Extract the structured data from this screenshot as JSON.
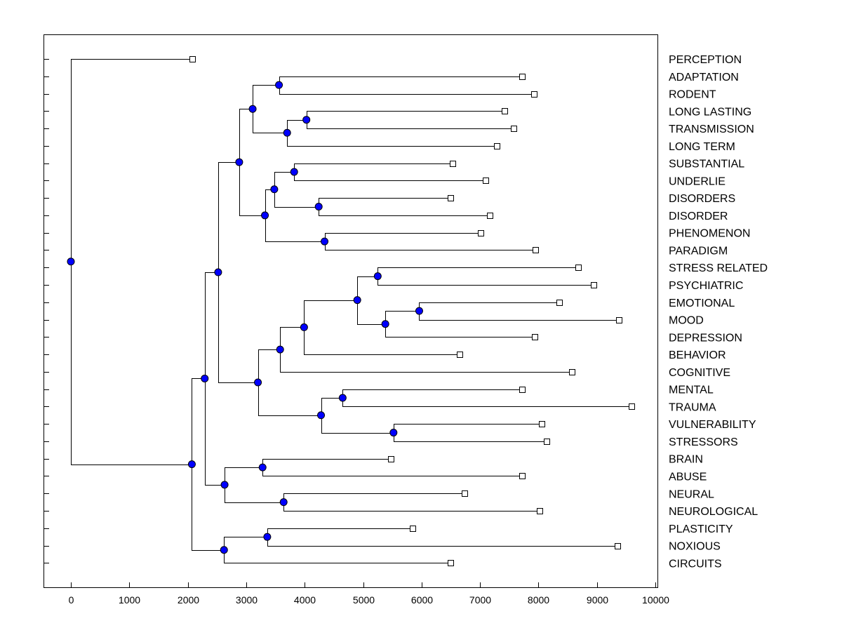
{
  "diagram": {
    "type": "dendrogram",
    "orientation": "horizontal",
    "x_axis": {
      "ticks": [
        "0",
        "1000",
        "2000",
        "3000",
        "4000",
        "5000",
        "6000",
        "7000",
        "8000",
        "9000",
        "10000"
      ],
      "range": [
        -450,
        10000
      ]
    },
    "leaves": [
      {
        "label": "PERCEPTION",
        "x": 2080
      },
      {
        "label": "ADAPTATION",
        "x": 7720
      },
      {
        "label": "RODENT",
        "x": 7920
      },
      {
        "label": "LONG LASTING",
        "x": 7420
      },
      {
        "label": "TRANSMISSION",
        "x": 7580
      },
      {
        "label": "LONG TERM",
        "x": 7290
      },
      {
        "label": "SUBSTANTIAL",
        "x": 6530
      },
      {
        "label": "UNDERLIE",
        "x": 7100
      },
      {
        "label": "DISORDERS",
        "x": 6490
      },
      {
        "label": "DISORDER",
        "x": 7170
      },
      {
        "label": "PHENOMENON",
        "x": 7010
      },
      {
        "label": "PARADIGM",
        "x": 7950
      },
      {
        "label": "STRESS RELATED",
        "x": 8680
      },
      {
        "label": "PSYCHIATRIC",
        "x": 8940
      },
      {
        "label": "EMOTIONAL",
        "x": 8360
      },
      {
        "label": "MOOD",
        "x": 9370
      },
      {
        "label": "DEPRESSION",
        "x": 7930
      },
      {
        "label": "BEHAVIOR",
        "x": 6650
      },
      {
        "label": "COGNITIVE",
        "x": 8570
      },
      {
        "label": "MENTAL",
        "x": 7720
      },
      {
        "label": "TRAUMA",
        "x": 9590
      },
      {
        "label": "VULNERABILITY",
        "x": 8060
      },
      {
        "label": "STRESSORS",
        "x": 8140
      },
      {
        "label": "BRAIN",
        "x": 5470
      },
      {
        "label": "ABUSE",
        "x": 7720
      },
      {
        "label": "NEURAL",
        "x": 6740
      },
      {
        "label": "NEUROLOGICAL",
        "x": 8020
      },
      {
        "label": "PLASTICITY",
        "x": 5850
      },
      {
        "label": "NOXIOUS",
        "x": 9350
      },
      {
        "label": "CIRCUITS",
        "x": 6500
      }
    ],
    "merges": [
      {
        "x": 3560,
        "children": [
          "L1",
          "L2"
        ]
      },
      {
        "x": 4030,
        "children": [
          "L3",
          "L4"
        ]
      },
      {
        "x": 3700,
        "children": [
          "M1",
          "L5"
        ]
      },
      {
        "x": 3110,
        "children": [
          "M0",
          "M2"
        ]
      },
      {
        "x": 3820,
        "children": [
          "L6",
          "L7"
        ]
      },
      {
        "x": 4240,
        "children": [
          "L8",
          "L9"
        ]
      },
      {
        "x": 3480,
        "children": [
          "M4",
          "M5"
        ]
      },
      {
        "x": 4340,
        "children": [
          "L10",
          "L11"
        ]
      },
      {
        "x": 3320,
        "children": [
          "M6",
          "M7"
        ]
      },
      {
        "x": 2880,
        "children": [
          "M3",
          "M8"
        ]
      },
      {
        "x": 5250,
        "children": [
          "L12",
          "L13"
        ]
      },
      {
        "x": 5960,
        "children": [
          "L14",
          "L15"
        ]
      },
      {
        "x": 5380,
        "children": [
          "M11",
          "L16"
        ]
      },
      {
        "x": 4900,
        "children": [
          "M10",
          "M12"
        ]
      },
      {
        "x": 3990,
        "children": [
          "M13",
          "L17"
        ]
      },
      {
        "x": 3580,
        "children": [
          "M14",
          "L18"
        ]
      },
      {
        "x": 4650,
        "children": [
          "L19",
          "L20"
        ]
      },
      {
        "x": 5520,
        "children": [
          "L21",
          "L22"
        ]
      },
      {
        "x": 4280,
        "children": [
          "M16",
          "M17"
        ]
      },
      {
        "x": 3200,
        "children": [
          "M15",
          "M18"
        ]
      },
      {
        "x": 2520,
        "children": [
          "M9",
          "M19"
        ]
      },
      {
        "x": 3280,
        "children": [
          "L23",
          "L24"
        ]
      },
      {
        "x": 3640,
        "children": [
          "L25",
          "L26"
        ]
      },
      {
        "x": 2630,
        "children": [
          "M21",
          "M22"
        ]
      },
      {
        "x": 2290,
        "children": [
          "M20",
          "M23"
        ]
      },
      {
        "x": 3360,
        "children": [
          "L27",
          "L28"
        ]
      },
      {
        "x": 2620,
        "children": [
          "M25",
          "L29"
        ]
      },
      {
        "x": 2070,
        "children": [
          "M24",
          "M26"
        ]
      },
      {
        "x": 0,
        "children": [
          "L0",
          "M27"
        ]
      }
    ],
    "colors": {
      "node_fill": "#0000ff",
      "leaf_fill": "#ffffff",
      "line": "#000000"
    }
  }
}
